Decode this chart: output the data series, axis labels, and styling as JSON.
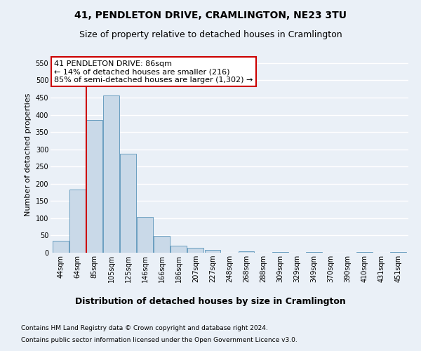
{
  "title_line1": "41, PENDLETON DRIVE, CRAMLINGTON, NE23 3TU",
  "title_line2": "Size of property relative to detached houses in Cramlington",
  "xlabel": "Distribution of detached houses by size in Cramlington",
  "ylabel": "Number of detached properties",
  "footnote1": "Contains HM Land Registry data © Crown copyright and database right 2024.",
  "footnote2": "Contains public sector information licensed under the Open Government Licence v3.0.",
  "categories": [
    "44sqm",
    "64sqm",
    "85sqm",
    "105sqm",
    "125sqm",
    "146sqm",
    "166sqm",
    "186sqm",
    "207sqm",
    "227sqm",
    "248sqm",
    "268sqm",
    "288sqm",
    "309sqm",
    "329sqm",
    "349sqm",
    "370sqm",
    "390sqm",
    "410sqm",
    "431sqm",
    "451sqm"
  ],
  "values": [
    35,
    183,
    385,
    455,
    288,
    103,
    48,
    20,
    14,
    8,
    0,
    5,
    0,
    3,
    0,
    3,
    0,
    0,
    2,
    0,
    3
  ],
  "bar_color": "#c9d9e8",
  "bar_edge_color": "#6a9ec0",
  "vline_color": "#cc0000",
  "vline_x_index": 2,
  "annotation_text": "41 PENDLETON DRIVE: 86sqm\n← 14% of detached houses are smaller (216)\n85% of semi-detached houses are larger (1,302) →",
  "annotation_box_color": "#ffffff",
  "annotation_box_edge": "#cc0000",
  "ylim": [
    0,
    570
  ],
  "yticks": [
    0,
    50,
    100,
    150,
    200,
    250,
    300,
    350,
    400,
    450,
    500,
    550
  ],
  "bg_color": "#eaf0f7",
  "plot_bg_color": "#eaf0f7",
  "grid_color": "#ffffff",
  "title_fontsize": 10,
  "subtitle_fontsize": 9,
  "ylabel_fontsize": 8,
  "xlabel_fontsize": 9,
  "tick_fontsize": 7,
  "annotation_fontsize": 8,
  "footnote_fontsize": 6.5
}
